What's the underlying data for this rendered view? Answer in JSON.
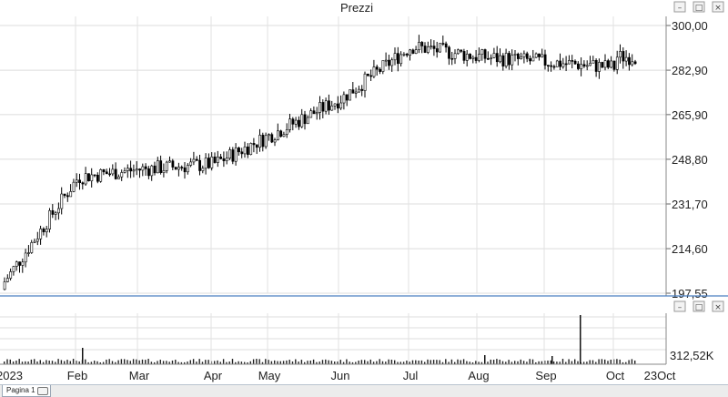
{
  "price_panel": {
    "title": "Prezzi",
    "y_ticks": [
      "300,00",
      "282,90",
      "265,90",
      "248,80",
      "231,70",
      "214,60",
      "197,55"
    ]
  },
  "volume_panel": {
    "last_label": "312,52K"
  },
  "x_axis": {
    "labels": [
      "2023",
      "Feb",
      "Mar",
      "Apr",
      "May",
      "Jun",
      "Jul",
      "Aug",
      "Sep",
      "Oct",
      "23Oct"
    ]
  },
  "window_buttons": {
    "minimize": "–",
    "restore": "□",
    "close": "×"
  },
  "footer": {
    "tab_label": "Pagina 1"
  },
  "colors": {
    "up_fill": "#ffffff",
    "down_fill": "#000000",
    "grid": "#d9d9d9",
    "separator": "#4a7fc1"
  },
  "chart_data": {
    "type": "candlestick",
    "title": "Prezzi",
    "ylim": [
      197.55,
      300.0
    ],
    "price_series_approx": {
      "months": [
        "2023",
        "Feb",
        "Mar",
        "Apr",
        "May",
        "Jun",
        "Jul",
        "Aug",
        "Sep",
        "Oct"
      ],
      "close": [
        200,
        242,
        245,
        247,
        258,
        272,
        292,
        288,
        286,
        284
      ]
    },
    "volume_last": "312,52K"
  }
}
